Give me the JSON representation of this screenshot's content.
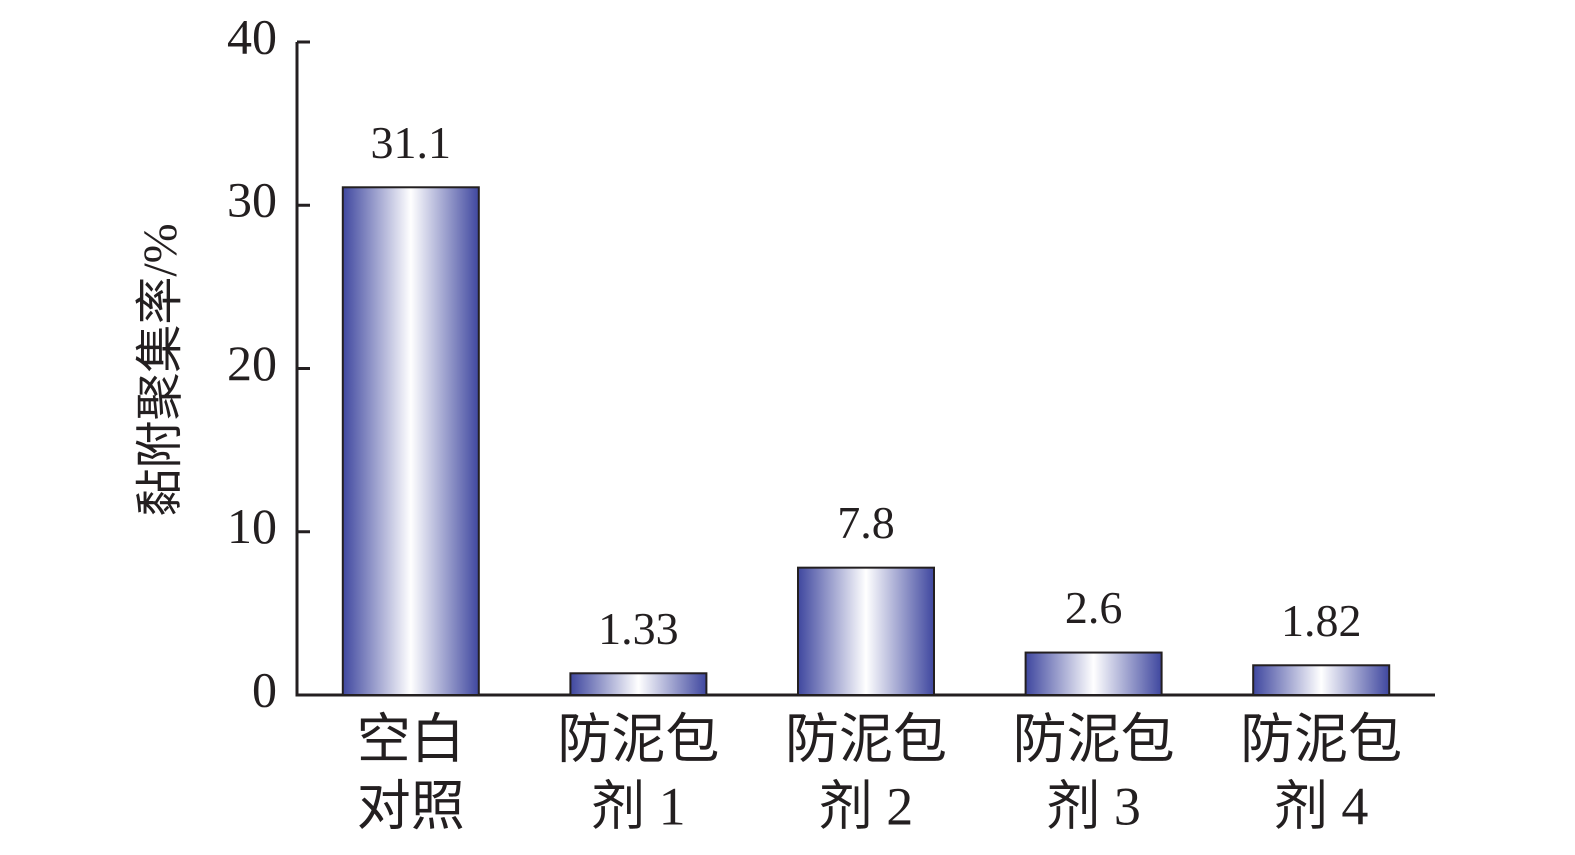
{
  "chart_data": {
    "type": "bar",
    "y_label": "黏附聚集率/%",
    "categories": [
      [
        "空白",
        "对照"
      ],
      [
        "防泥包",
        "剂 1"
      ],
      [
        "防泥包",
        "剂 2"
      ],
      [
        "防泥包",
        "剂 3"
      ],
      [
        "防泥包",
        "剂 4"
      ]
    ],
    "values": [
      31.1,
      1.33,
      7.8,
      2.6,
      1.82
    ],
    "color": "#3f479f",
    "ylim": [
      0,
      40
    ],
    "yticks": [
      0,
      10,
      20,
      30,
      40
    ]
  }
}
